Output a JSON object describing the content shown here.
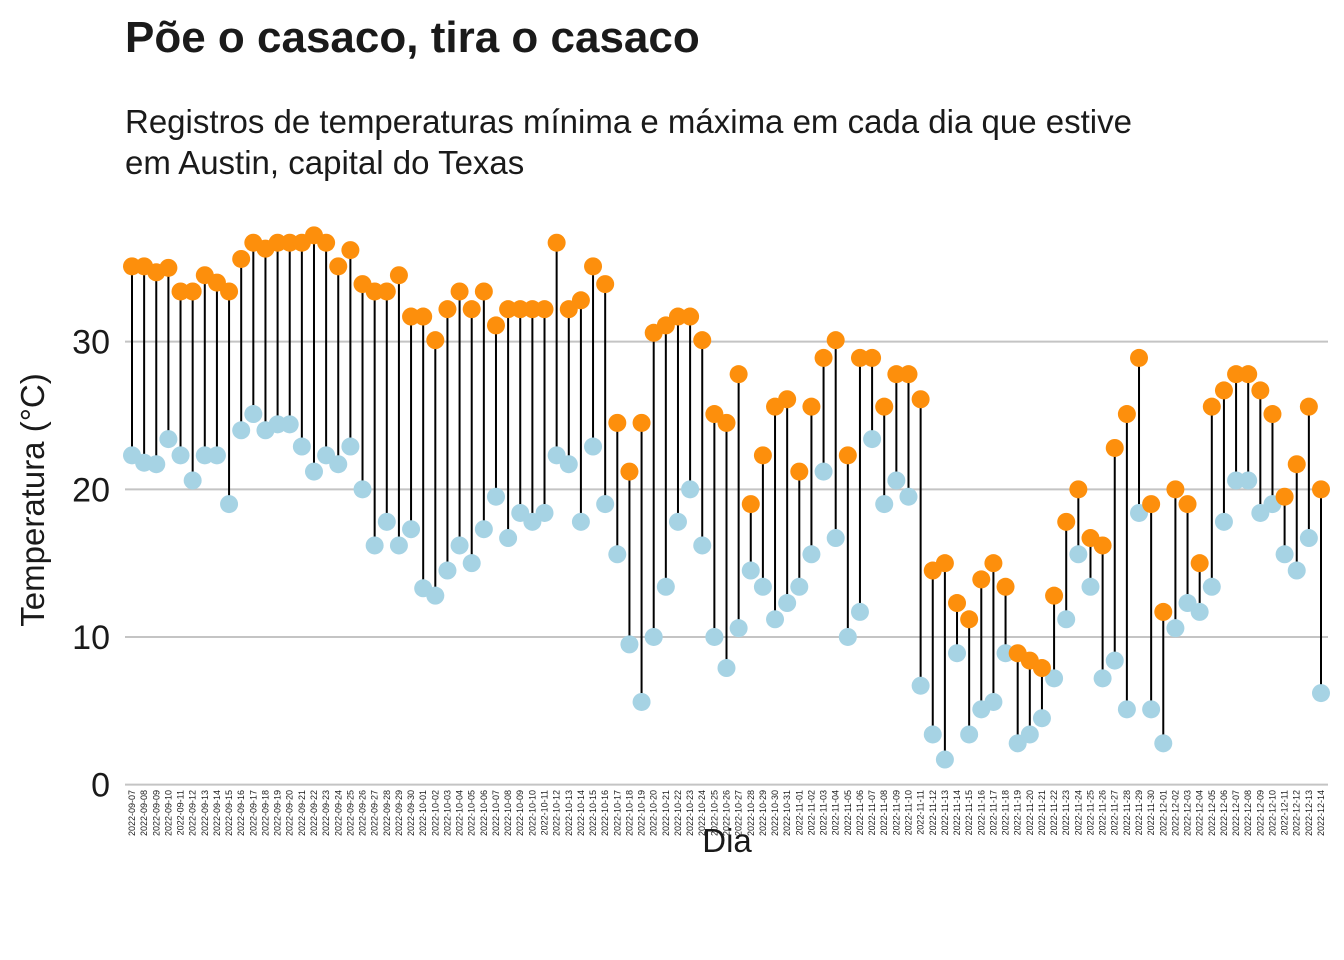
{
  "chart_data": {
    "type": "dumbbell",
    "title": "Põe o casaco, tira o casaco",
    "subtitle": [
      "Registros de temperaturas mínima e máxima em cada dia que estive",
      "em Austin, capital do Texas"
    ],
    "x_label": "Dia",
    "y_label": "Temperatura (°C)",
    "ylim": [
      -0.7,
      37.9
    ],
    "yticks": [
      0,
      10,
      20,
      30
    ],
    "grid": true,
    "segment_color": "#000000",
    "categories": [
      "2022-09-07",
      "2022-09-08",
      "2022-09-09",
      "2022-09-10",
      "2022-09-11",
      "2022-09-12",
      "2022-09-13",
      "2022-09-14",
      "2022-09-15",
      "2022-09-16",
      "2022-09-17",
      "2022-09-18",
      "2022-09-19",
      "2022-09-20",
      "2022-09-21",
      "2022-09-22",
      "2022-09-23",
      "2022-09-24",
      "2022-09-25",
      "2022-09-26",
      "2022-09-27",
      "2022-09-28",
      "2022-09-29",
      "2022-09-30",
      "2022-10-01",
      "2022-10-02",
      "2022-10-03",
      "2022-10-04",
      "2022-10-05",
      "2022-10-06",
      "2022-10-07",
      "2022-10-08",
      "2022-10-09",
      "2022-10-10",
      "2022-10-11",
      "2022-10-12",
      "2022-10-13",
      "2022-10-14",
      "2022-10-15",
      "2022-10-16",
      "2022-10-17",
      "2022-10-18",
      "2022-10-19",
      "2022-10-20",
      "2022-10-21",
      "2022-10-22",
      "2022-10-23",
      "2022-10-24",
      "2022-10-25",
      "2022-10-26",
      "2022-10-27",
      "2022-10-28",
      "2022-10-29",
      "2022-10-30",
      "2022-10-31",
      "2022-11-01",
      "2022-11-02",
      "2022-11-03",
      "2022-11-04",
      "2022-11-05",
      "2022-11-06",
      "2022-11-07",
      "2022-11-08",
      "2022-11-09",
      "2022-11-10",
      "2022-11-11",
      "2022-11-12",
      "2022-11-13",
      "2022-11-14",
      "2022-11-15",
      "2022-11-16",
      "2022-11-17",
      "2022-11-18",
      "2022-11-19",
      "2022-11-20",
      "2022-11-21",
      "2022-11-22",
      "2022-11-23",
      "2022-11-24",
      "2022-11-25",
      "2022-11-26",
      "2022-11-27",
      "2022-11-28",
      "2022-11-29",
      "2022-11-30",
      "2022-12-01",
      "2022-12-02",
      "2022-12-03",
      "2022-12-04",
      "2022-12-05",
      "2022-12-06",
      "2022-12-07",
      "2022-12-08",
      "2022-12-09",
      "2022-12-10",
      "2022-12-11",
      "2022-12-12",
      "2022-12-13",
      "2022-12-14"
    ],
    "series": [
      {
        "color": "#a6d3e4",
        "values": [
          22.3,
          21.8,
          21.7,
          23.4,
          22.3,
          20.6,
          22.3,
          22.3,
          19.0,
          24.0,
          25.1,
          24.0,
          24.4,
          24.4,
          22.9,
          21.2,
          22.3,
          21.7,
          22.9,
          20.0,
          16.2,
          17.8,
          16.2,
          17.3,
          13.3,
          12.8,
          14.5,
          16.2,
          15.0,
          17.3,
          19.5,
          16.7,
          18.4,
          17.8,
          18.4,
          22.3,
          21.7,
          17.8,
          22.9,
          19.0,
          15.6,
          9.5,
          5.6,
          10.0,
          13.4,
          17.8,
          20.0,
          16.2,
          10.0,
          7.9,
          10.6,
          14.5,
          13.4,
          11.2,
          12.3,
          13.4,
          15.6,
          21.2,
          16.7,
          10.0,
          11.7,
          23.4,
          19.0,
          20.6,
          19.5,
          6.7,
          3.4,
          1.7,
          8.9,
          3.4,
          5.1,
          5.6,
          8.9,
          2.8,
          3.4,
          4.5,
          7.2,
          11.2,
          15.6,
          13.4,
          7.2,
          8.4,
          5.1,
          18.4,
          5.1,
          2.8,
          10.6,
          12.3,
          11.7,
          13.4,
          17.8,
          20.6,
          20.6,
          18.4,
          19.0,
          15.6,
          14.5,
          16.7,
          6.2
        ]
      },
      {
        "color": "#fd8f0c",
        "values": [
          35.1,
          35.1,
          34.7,
          35.0,
          33.4,
          33.4,
          34.5,
          34.0,
          33.4,
          35.6,
          36.7,
          36.3,
          36.7,
          36.7,
          36.7,
          37.2,
          36.7,
          35.1,
          36.2,
          33.9,
          33.4,
          33.4,
          34.5,
          31.7,
          31.7,
          30.1,
          32.2,
          33.4,
          32.2,
          33.4,
          31.1,
          32.2,
          32.2,
          32.2,
          32.2,
          36.7,
          32.2,
          32.8,
          35.1,
          33.9,
          24.5,
          21.2,
          24.5,
          30.6,
          31.1,
          31.7,
          31.7,
          30.1,
          25.1,
          24.5,
          27.8,
          19.0,
          22.3,
          25.6,
          26.1,
          21.2,
          25.6,
          28.9,
          30.1,
          22.3,
          28.9,
          28.9,
          25.6,
          27.8,
          27.8,
          26.1,
          14.5,
          15.0,
          12.3,
          11.2,
          13.9,
          15.0,
          13.4,
          8.9,
          8.4,
          7.9,
          12.8,
          17.8,
          20.0,
          16.7,
          16.2,
          22.8,
          25.1,
          28.9,
          19.0,
          11.7,
          20.0,
          19.0,
          15.0,
          25.6,
          26.7,
          27.8,
          27.8,
          26.7,
          25.1,
          19.5,
          21.7,
          25.6,
          20.0
        ]
      }
    ]
  }
}
